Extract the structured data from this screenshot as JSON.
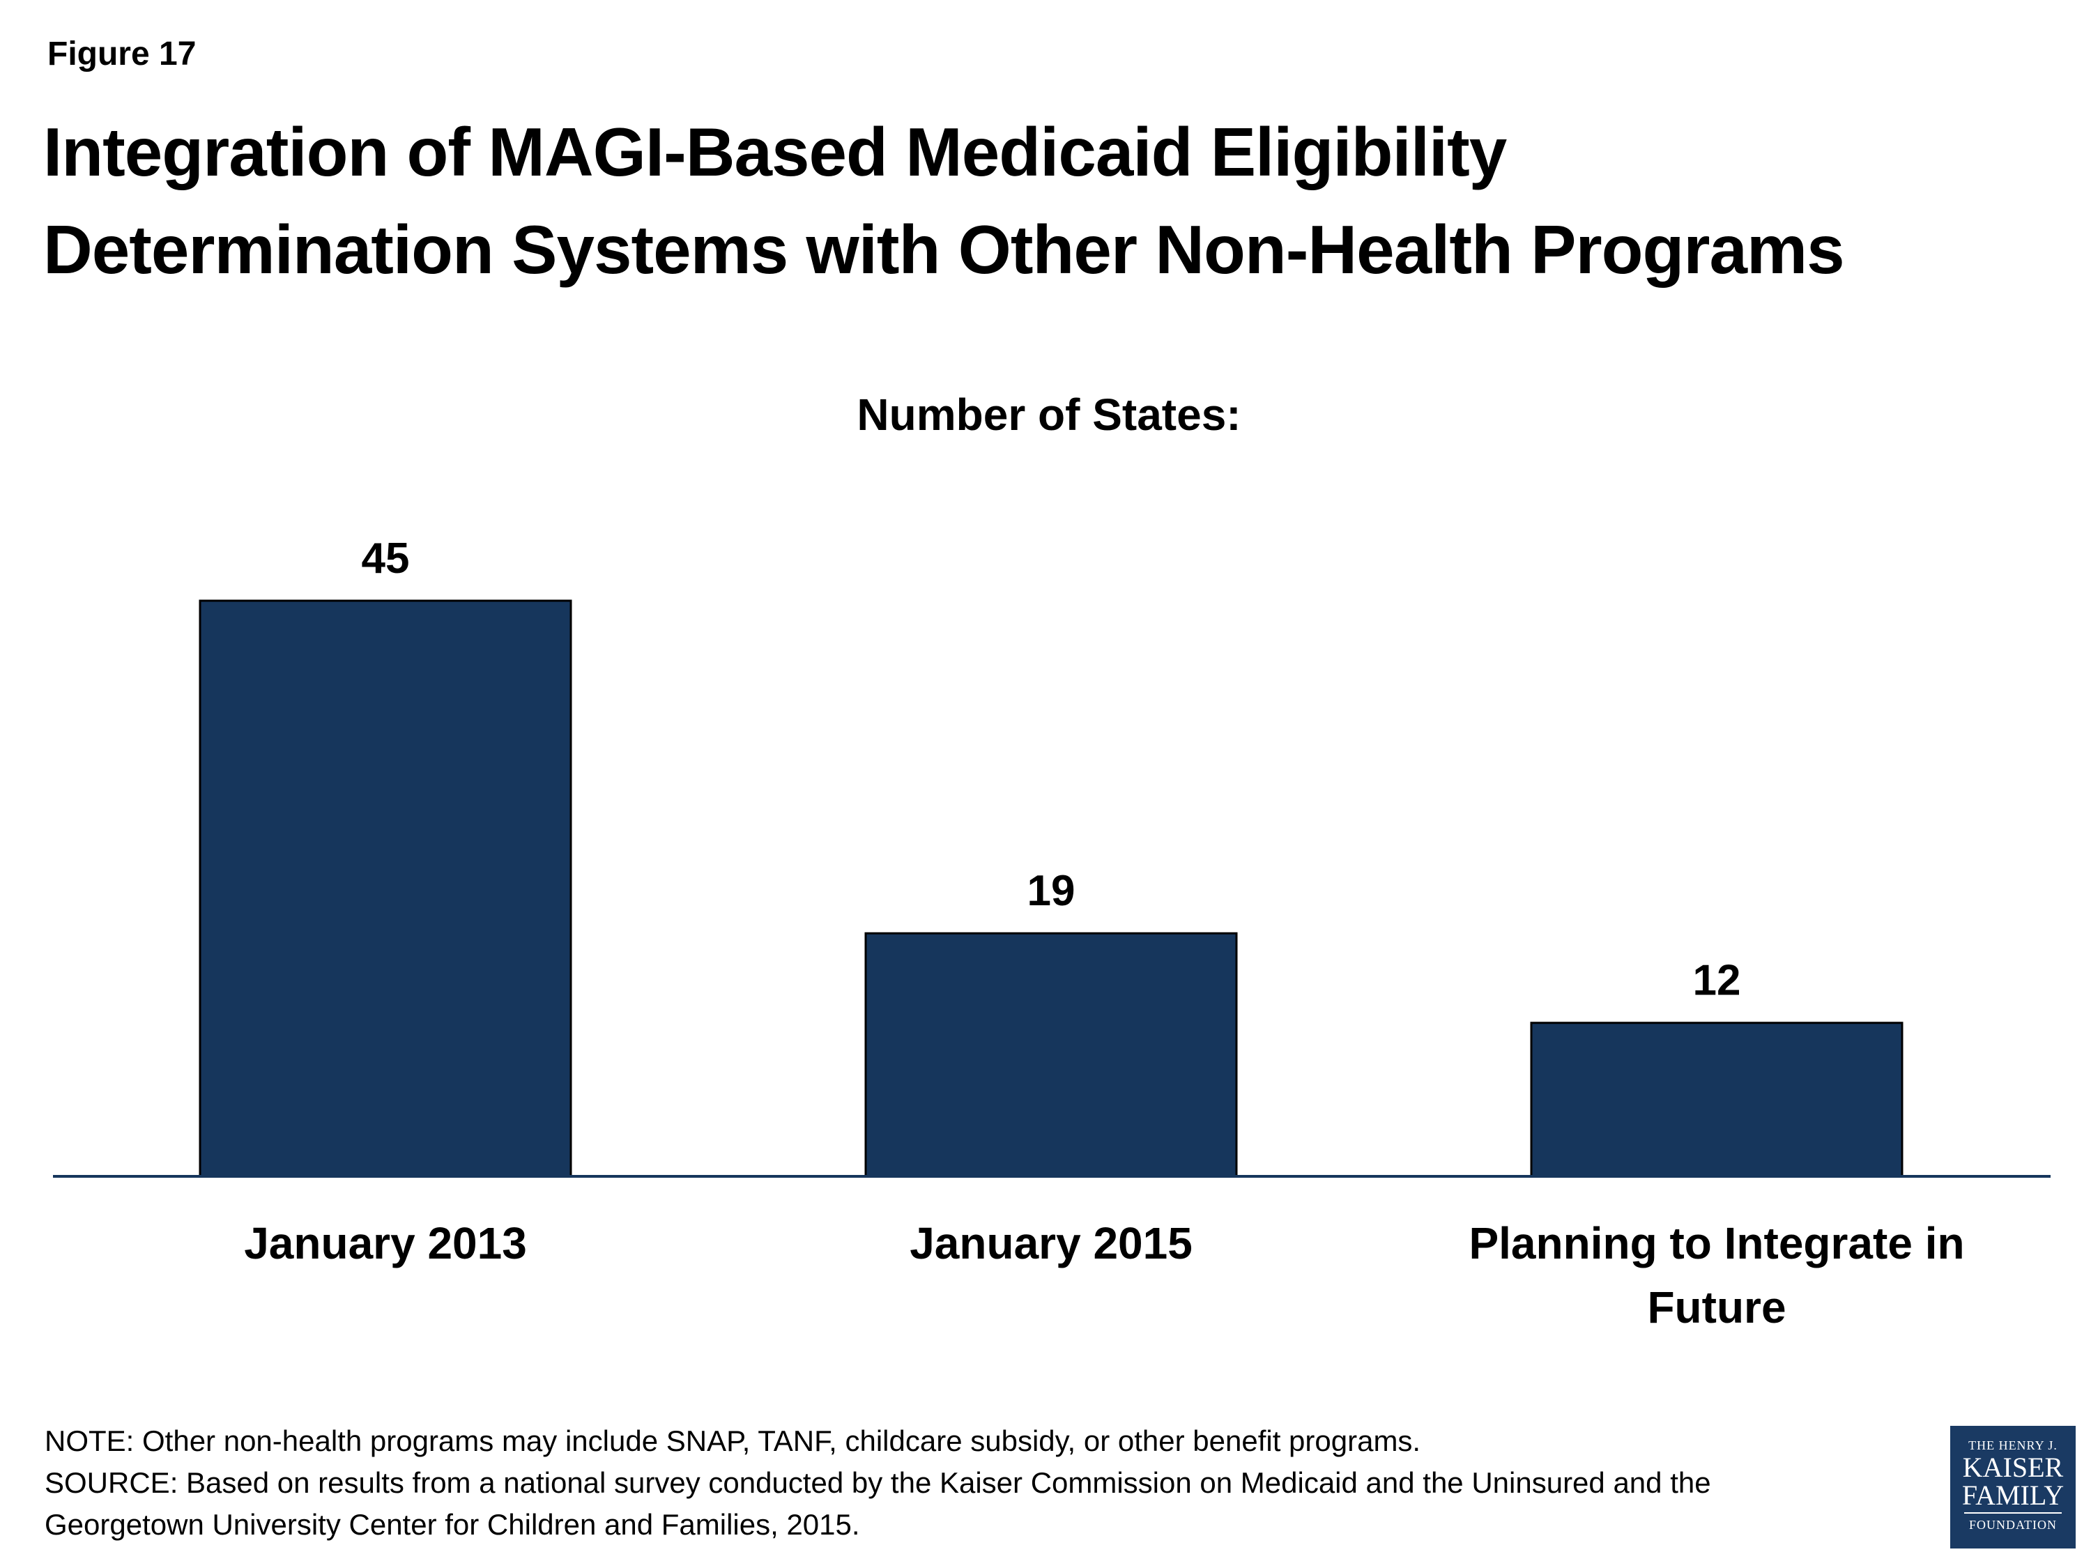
{
  "figure_label": "Figure 17",
  "title_lines": [
    "Integration of MAGI-Based Medicaid Eligibility",
    "Determination Systems with Other Non-Health Programs"
  ],
  "colors": {
    "bar": "#16365c",
    "bar_stroke": "#000000",
    "axis": "#16365c",
    "text": "#000000",
    "logo_bg": "#1a3a63"
  },
  "chart_data": {
    "type": "bar",
    "title": "Number of States:",
    "categories": [
      [
        "January 2013"
      ],
      [
        "January 2015"
      ],
      [
        "Planning to Integrate in",
        "Future"
      ]
    ],
    "values": [
      45,
      19,
      12
    ],
    "data_labels": [
      "45",
      "19",
      "12"
    ],
    "xlabel": "",
    "ylabel": "",
    "ylim": [
      0,
      45
    ],
    "grid": false,
    "legend": "none"
  },
  "footnotes": {
    "note": "NOTE: Other non-health programs may include SNAP, TANF, childcare subsidy, or other benefit programs.",
    "source_line1": "SOURCE: Based on results from a national survey conducted by the Kaiser Commission on Medicaid and the Uninsured and the",
    "source_line2": "Georgetown University Center for Children and Families, 2015."
  },
  "logo": {
    "line1": "THE HENRY J.",
    "line2": "KAISER",
    "line3": "FAMILY",
    "line4": "FOUNDATION"
  }
}
